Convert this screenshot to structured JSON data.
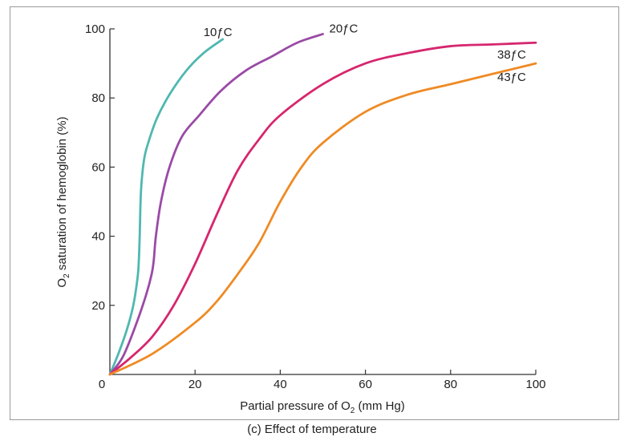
{
  "caption": "(c) Effect of temperature",
  "chart_data": {
    "type": "line",
    "title": "",
    "xlabel": {
      "main": "Partial pressure of O",
      "sub": "2",
      "tail": " (mm Hg)"
    },
    "ylabel": {
      "main": "O",
      "sub": "2",
      "tail": " saturation of hemoglobin (%)"
    },
    "xlim": [
      0,
      100
    ],
    "ylim": [
      0,
      100
    ],
    "x_ticks": [
      0,
      20,
      40,
      60,
      80,
      100
    ],
    "y_ticks": [
      20,
      40,
      60,
      80,
      100
    ],
    "x_tick_labels": [
      "0",
      "20",
      "40",
      "60",
      "80",
      "100"
    ],
    "y_tick_labels": [
      "20",
      "40",
      "60",
      "80",
      "100"
    ],
    "grid": false,
    "series": [
      {
        "name": "10ƒC",
        "color": "#4fb8b0",
        "x": [
          0,
          2,
          4,
          5.5,
          6.5,
          6.8,
          7.0,
          7.3,
          8,
          9,
          11,
          14,
          18,
          22,
          26.5
        ],
        "y": [
          0,
          6,
          13,
          20,
          28,
          33,
          40,
          53,
          62,
          67,
          74,
          81,
          88,
          93,
          97
        ]
      },
      {
        "name": "20ƒC",
        "color": "#9a4aa6",
        "x": [
          0,
          3,
          6,
          8.5,
          9.8,
          10.3,
          10.8,
          12,
          14,
          17,
          21,
          26,
          32,
          38,
          44,
          50
        ],
        "y": [
          0,
          5,
          14,
          23,
          29,
          33,
          40,
          50,
          60,
          69,
          75,
          82,
          88,
          92,
          96,
          98.5
        ]
      },
      {
        "name": "38ƒC",
        "color": "#d6266e",
        "x": [
          0,
          5,
          10,
          15,
          20,
          25,
          30,
          35,
          40,
          50,
          60,
          70,
          80,
          90,
          100
        ],
        "y": [
          0,
          5,
          11,
          20,
          32,
          46,
          59,
          68,
          75,
          84,
          90,
          93,
          95,
          95.5,
          96
        ]
      },
      {
        "name": "43ƒC",
        "color": "#ef8a24",
        "x": [
          0,
          10,
          20,
          25,
          30,
          35,
          40,
          45,
          50,
          60,
          70,
          80,
          90,
          100
        ],
        "y": [
          0,
          6,
          15,
          21,
          29,
          38,
          50,
          60,
          67,
          76,
          81,
          84,
          87,
          90
        ]
      }
    ]
  }
}
